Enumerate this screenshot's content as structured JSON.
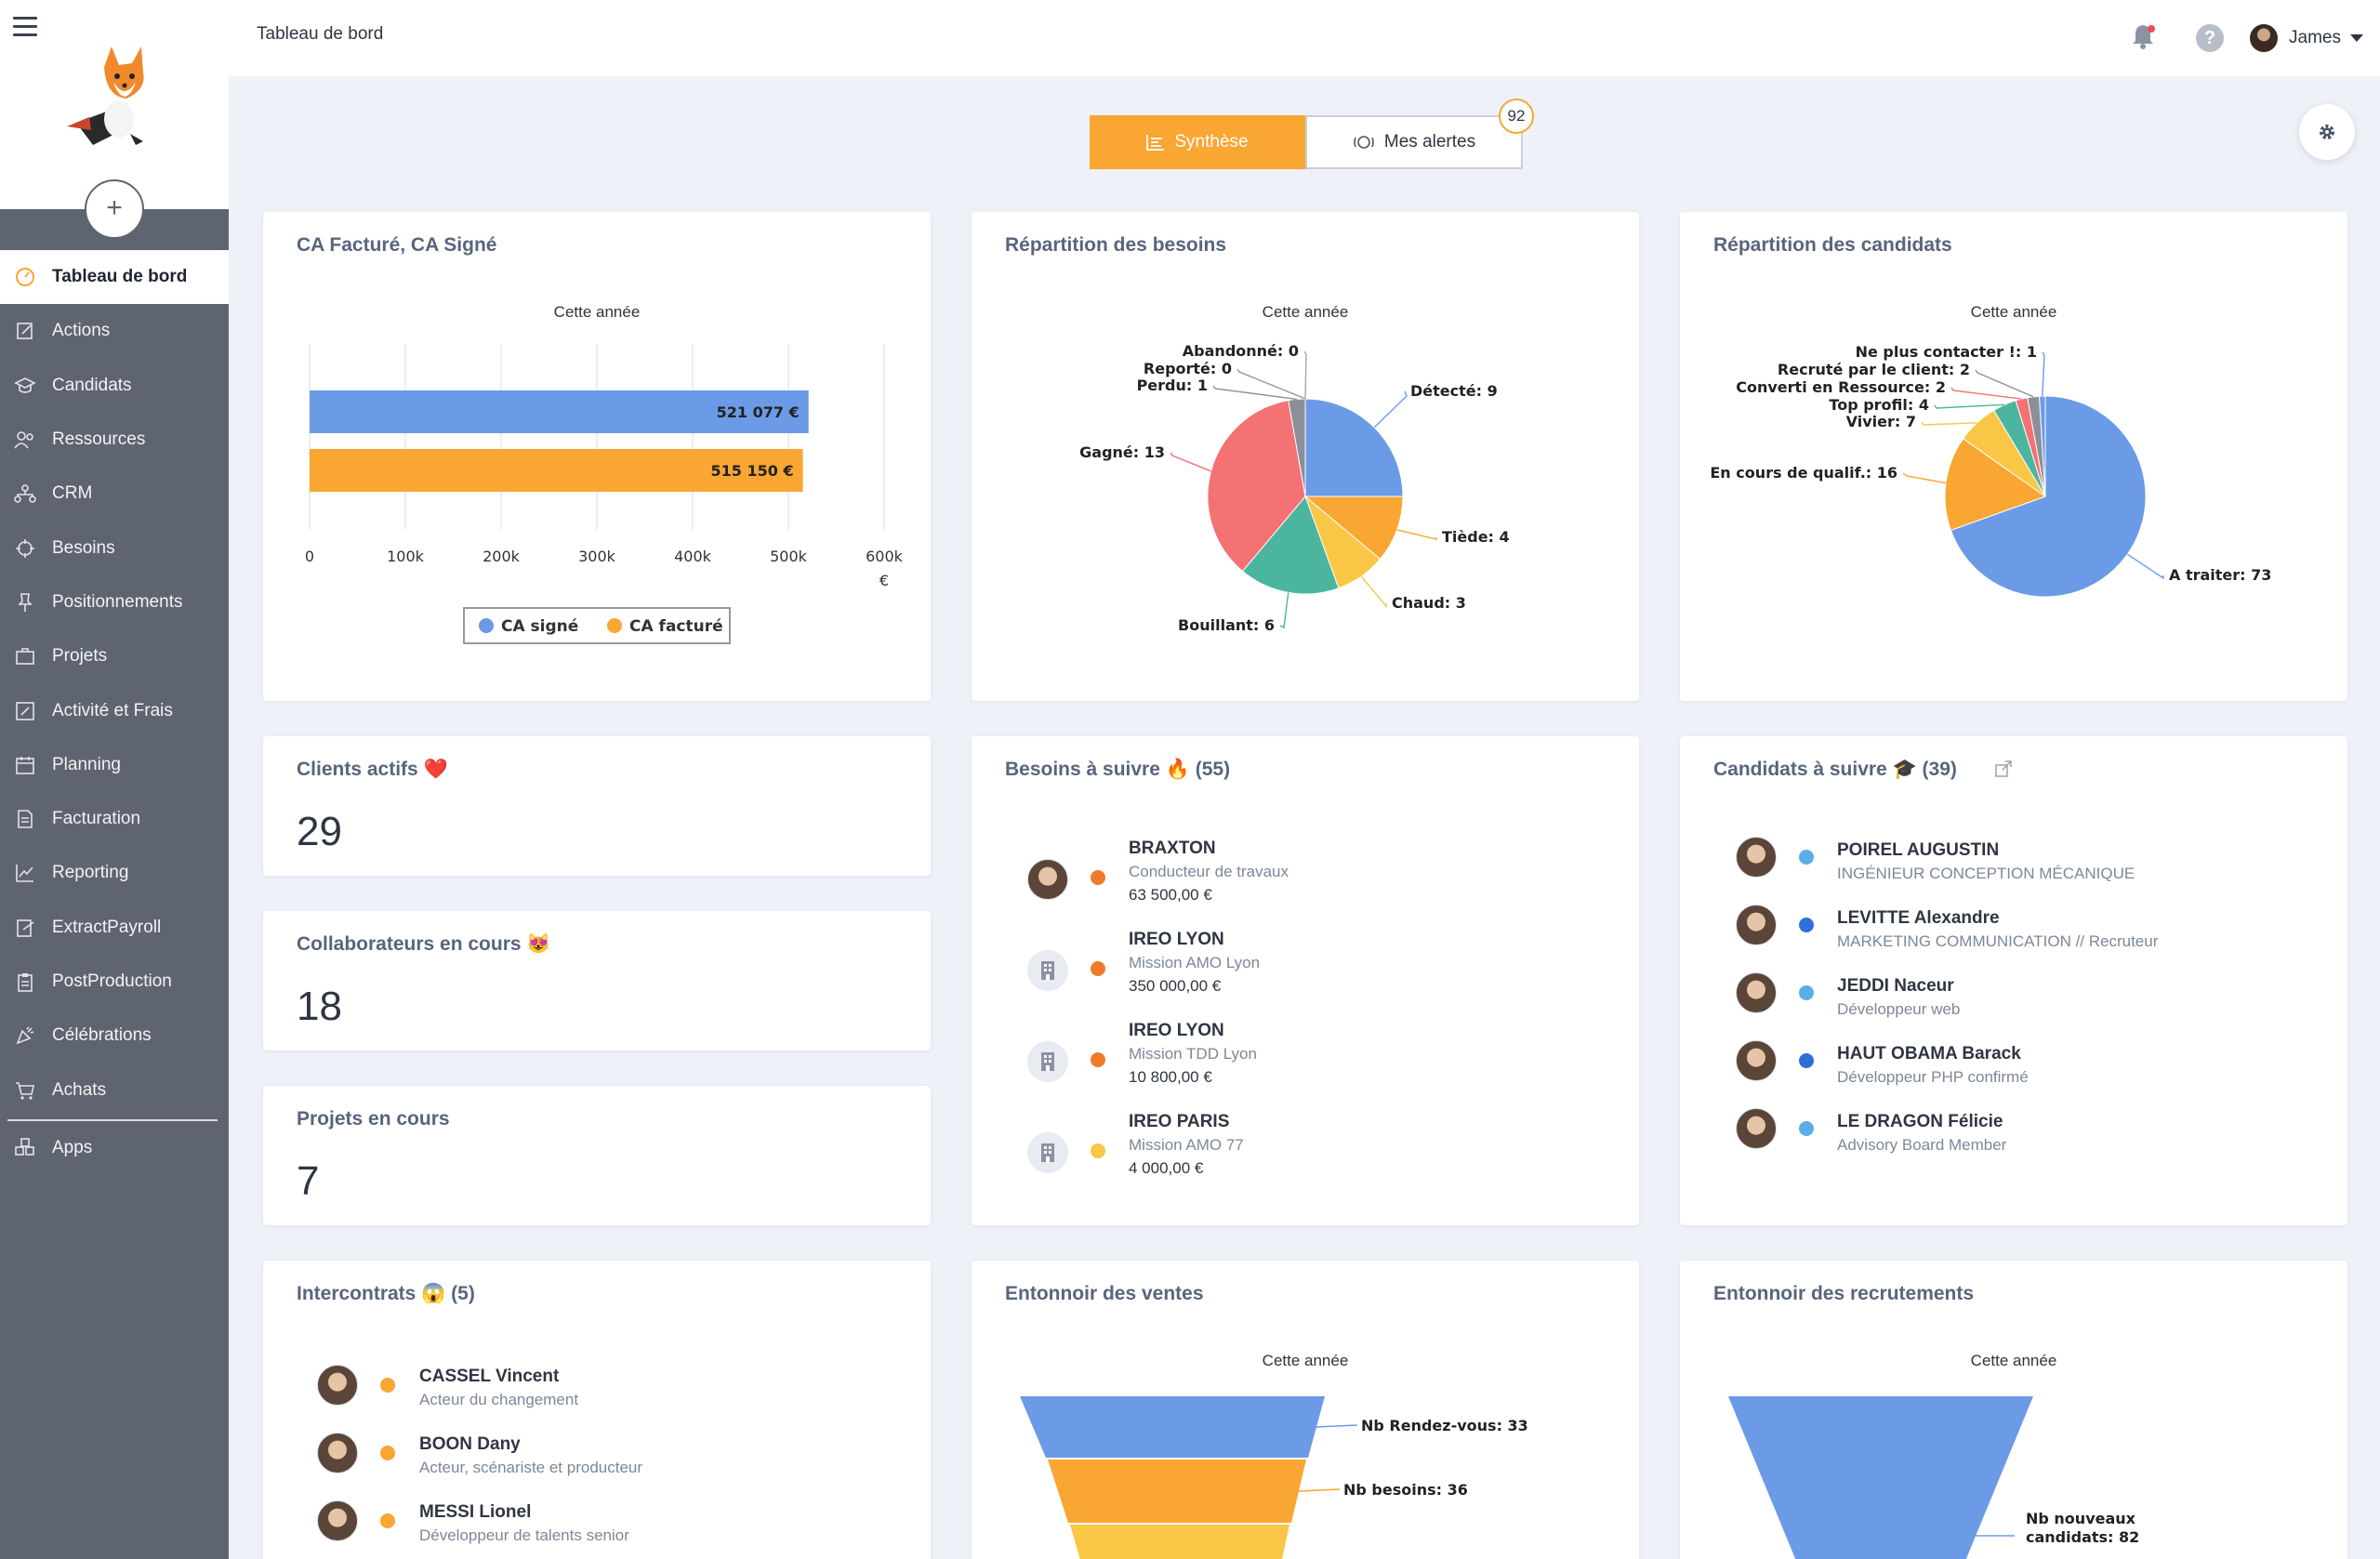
{
  "header": {
    "page_title": "Tableau de bord",
    "user_name": "James"
  },
  "sidebar": {
    "add_label": "+",
    "items": [
      {
        "label": "Tableau de bord",
        "icon": "gauge-icon",
        "active": true
      },
      {
        "label": "Actions",
        "icon": "edit-icon"
      },
      {
        "label": "Candidats",
        "icon": "graduation-cap-icon"
      },
      {
        "label": "Ressources",
        "icon": "users-icon"
      },
      {
        "label": "CRM",
        "icon": "network-icon"
      },
      {
        "label": "Besoins",
        "icon": "crosshair-icon"
      },
      {
        "label": "Positionnements",
        "icon": "pin-icon"
      },
      {
        "label": "Projets",
        "icon": "briefcase-icon"
      },
      {
        "label": "Activité et Frais",
        "icon": "edit-box-icon"
      },
      {
        "label": "Planning",
        "icon": "calendar-icon"
      },
      {
        "label": "Facturation",
        "icon": "invoice-icon"
      },
      {
        "label": "Reporting",
        "icon": "line-chart-icon"
      },
      {
        "label": "ExtractPayroll",
        "icon": "export-icon"
      },
      {
        "label": "PostProduction",
        "icon": "clipboard-icon"
      },
      {
        "label": "Célébrations",
        "icon": "party-icon"
      },
      {
        "label": "Achats",
        "icon": "cart-icon"
      },
      {
        "label": "Apps",
        "icon": "apps-icon"
      }
    ]
  },
  "tabs": {
    "synthese": "Synthèse",
    "alertes": "Mes alertes",
    "alert_count": "92"
  },
  "colors": {
    "accent": "#f9a632",
    "blue": "#6b9be6",
    "sidebar": "#5e6570",
    "title": "#58657d"
  },
  "cards": {
    "ca": {
      "title": "CA Facturé, CA Signé",
      "subtitle": "Cette année",
      "unit": "€",
      "legend": [
        "CA signé",
        "CA facturé"
      ]
    },
    "besoins_pie": {
      "title": "Répartition des besoins",
      "subtitle": "Cette année"
    },
    "candidats_pie": {
      "title": "Répartition des candidats",
      "subtitle": "Cette année"
    },
    "clients": {
      "title": "Clients actifs ❤️",
      "value": "29"
    },
    "collab": {
      "title": "Collaborateurs en cours 😻",
      "value": "18"
    },
    "projets": {
      "title": "Projets en cours",
      "value": "7"
    },
    "besoins_suivre": {
      "title": "Besoins à suivre 🔥 (55)",
      "items": [
        {
          "name": "BRAXTON",
          "sub": "Conducteur de travaux",
          "amount": "63 500,00 €",
          "dot": "#f07a2c",
          "avatar": "person"
        },
        {
          "name": "IREO LYON",
          "sub": "Mission AMO Lyon",
          "amount": "350 000,00 €",
          "dot": "#f07a2c",
          "avatar": "building"
        },
        {
          "name": "IREO LYON",
          "sub": "Mission TDD Lyon",
          "amount": "10 800,00 €",
          "dot": "#f07a2c",
          "avatar": "building"
        },
        {
          "name": "IREO PARIS",
          "sub": "Mission AMO 77",
          "amount": "4 000,00 €",
          "dot": "#f9c646",
          "avatar": "building"
        }
      ]
    },
    "candidats_suivre": {
      "title": "Candidats à suivre 🎓 (39)",
      "items": [
        {
          "name": "POIREL AUGUSTIN",
          "sub": "INGÉNIEUR CONCEPTION MÉCANIQUE",
          "dot": "#5aaee8"
        },
        {
          "name": "LEVITTE Alexandre",
          "sub": "MARKETING COMMUNICATION // Recruteur",
          "dot": "#2f6fd8"
        },
        {
          "name": "JEDDI Naceur",
          "sub": "Développeur web",
          "dot": "#5aaee8"
        },
        {
          "name": "HAUT OBAMA Barack",
          "sub": "Développeur PHP confirmé",
          "dot": "#2f6fd8"
        },
        {
          "name": "LE DRAGON Félicie",
          "sub": "Advisory Board Member",
          "dot": "#5aaee8"
        }
      ]
    },
    "intercontrats": {
      "title": "Intercontrats 😱 (5)",
      "items": [
        {
          "name": "CASSEL Vincent",
          "sub": "Acteur du changement",
          "dot": "#f9a632"
        },
        {
          "name": "BOON Dany",
          "sub": "Acteur, scénariste et producteur",
          "dot": "#f9a632"
        },
        {
          "name": "MESSI Lionel",
          "sub": "Développeur de talents senior",
          "dot": "#f9a632"
        }
      ]
    },
    "funnel_ventes": {
      "title": "Entonnoir des ventes",
      "subtitle": "Cette année"
    },
    "funnel_recrut": {
      "title": "Entonnoir des recrutements",
      "subtitle": "Cette année"
    }
  },
  "chart_data": [
    {
      "type": "bar",
      "orientation": "horizontal",
      "title": "Cette année",
      "categories": [
        "CA signé",
        "CA facturé"
      ],
      "values": [
        521077,
        515150
      ],
      "data_labels": [
        "521 077 €",
        "515 150 €"
      ],
      "colors": [
        "#6b9be6",
        "#f9a632"
      ],
      "xlim": [
        0,
        600000
      ],
      "xticks": [
        "0",
        "100k",
        "200k",
        "300k",
        "400k",
        "500k",
        "600k"
      ],
      "xlabel": "€",
      "grid": true,
      "legend": "bottom"
    },
    {
      "type": "pie",
      "title": "Cette année",
      "slices": [
        {
          "label": "Détecté",
          "value": 9,
          "color": "#6b9be6"
        },
        {
          "label": "Tiède",
          "value": 4,
          "color": "#f9a632"
        },
        {
          "label": "Chaud",
          "value": 3,
          "color": "#f9c646"
        },
        {
          "label": "Bouillant",
          "value": 6,
          "color": "#4cb5a0"
        },
        {
          "label": "Gagné",
          "value": 13,
          "color": "#f47174"
        },
        {
          "label": "Perdu",
          "value": 1,
          "color": "#8b8f98"
        },
        {
          "label": "Reporté",
          "value": 0,
          "color": "#c7c9cf"
        },
        {
          "label": "Abandonné",
          "value": 0,
          "color": "#a4a8b0"
        }
      ]
    },
    {
      "type": "pie",
      "title": "Cette année",
      "slices": [
        {
          "label": "A traiter",
          "value": 73,
          "color": "#6b9be6"
        },
        {
          "label": "En cours de qualif.",
          "value": 16,
          "color": "#f9a632"
        },
        {
          "label": "Vivier",
          "value": 7,
          "color": "#f9c646"
        },
        {
          "label": "Top profil",
          "value": 4,
          "color": "#4cb5a0"
        },
        {
          "label": "Converti en Ressource",
          "value": 2,
          "color": "#f47174"
        },
        {
          "label": "Recruté par le client",
          "value": 2,
          "color": "#8b8f98"
        },
        {
          "label": "Ne plus contacter !",
          "value": 1,
          "color": "#6b9be6"
        }
      ]
    },
    {
      "type": "funnel",
      "title": "Cette année",
      "stages": [
        {
          "label": "Nb Rendez-vous",
          "value": 33,
          "color": "#6b9be6"
        },
        {
          "label": "Nb besoins",
          "value": 36,
          "color": "#f9a632"
        },
        {
          "label": "",
          "value": null,
          "color": "#f9c646"
        }
      ]
    },
    {
      "type": "funnel",
      "title": "Cette année",
      "stages": [
        {
          "label": "Nb nouveaux candidats",
          "value": 82,
          "color": "#6b9be6"
        }
      ]
    }
  ]
}
